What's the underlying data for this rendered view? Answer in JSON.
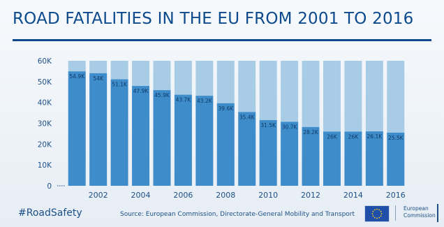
{
  "header": {
    "title": "ROAD FATALITIES IN THE EU FROM 2001 TO 2016"
  },
  "chart_data": {
    "type": "bar",
    "title": "ROAD FATALITIES IN THE EU FROM 2001 TO 2016",
    "xlabel": "",
    "ylabel": "",
    "categories": [
      "2001",
      "2002",
      "2003",
      "2004",
      "2005",
      "2006",
      "2007",
      "2008",
      "2009",
      "2010",
      "2011",
      "2012",
      "2013",
      "2014",
      "2015",
      "2016"
    ],
    "x_tick_labels": [
      "2002",
      "2004",
      "2006",
      "2008",
      "2010",
      "2012",
      "2014",
      "2016"
    ],
    "values": [
      54900,
      54000,
      51100,
      47900,
      45900,
      43700,
      43200,
      39600,
      35400,
      31500,
      30700,
      28200,
      26000,
      26000,
      26100,
      25500
    ],
    "data_labels": [
      "54.9K",
      "54K",
      "51.1K",
      "47.9K",
      "45.9K",
      "43.7K",
      "43.2K",
      "39.6K",
      "35.4K",
      "31.5K",
      "30.7K",
      "28.2K",
      "26K",
      "26K",
      "26.1K",
      "25.5K"
    ],
    "background_max": 60000,
    "ylim": [
      0,
      60000
    ],
    "y_ticks": [
      0,
      10000,
      20000,
      30000,
      40000,
      50000,
      60000
    ],
    "y_tick_labels": [
      "0",
      "10K",
      "20K",
      "30K",
      "40K",
      "50K",
      "60K"
    ],
    "grid": false,
    "colors": {
      "bar": "#3f8ccb",
      "bar_background": "#a8cce6",
      "title": "#0c4a8c",
      "text": "#1d4f86"
    }
  },
  "footer": {
    "hashtag": "#RoadSafety",
    "source": "Source: European Commission, Directorate-General Mobility and Transport",
    "logo_line1": "European",
    "logo_line2": "Commission"
  }
}
